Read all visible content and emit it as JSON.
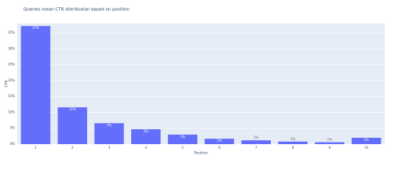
{
  "chart_data": {
    "type": "bar",
    "title": "Queries mean CTR distribution based on position",
    "x_label": "Position",
    "y_label": "CTR",
    "categories": [
      "1",
      "2",
      "3",
      "4",
      "5",
      "6",
      "7",
      "8",
      "9",
      "10"
    ],
    "values": [
      37.2,
      11.6,
      6.6,
      4.7,
      3.0,
      1.7,
      1.2,
      0.8,
      0.6,
      2.0
    ],
    "value_labels": [
      "37%",
      "12%",
      "7%",
      "5%",
      "3%",
      "2%",
      "1%",
      "1%",
      "1%",
      "2%"
    ],
    "color": "#636efa",
    "ylim": [
      0,
      38
    ],
    "yticks": [
      {
        "value": 0,
        "label": "0%"
      },
      {
        "value": 5,
        "label": "5%"
      },
      {
        "value": 10,
        "label": "10%"
      },
      {
        "value": 15,
        "label": "15%"
      },
      {
        "value": 20,
        "label": "20%"
      },
      {
        "value": 25,
        "label": "25%"
      },
      {
        "value": 30,
        "label": "30%"
      },
      {
        "value": 35,
        "label": "35%"
      }
    ],
    "grid": true
  }
}
